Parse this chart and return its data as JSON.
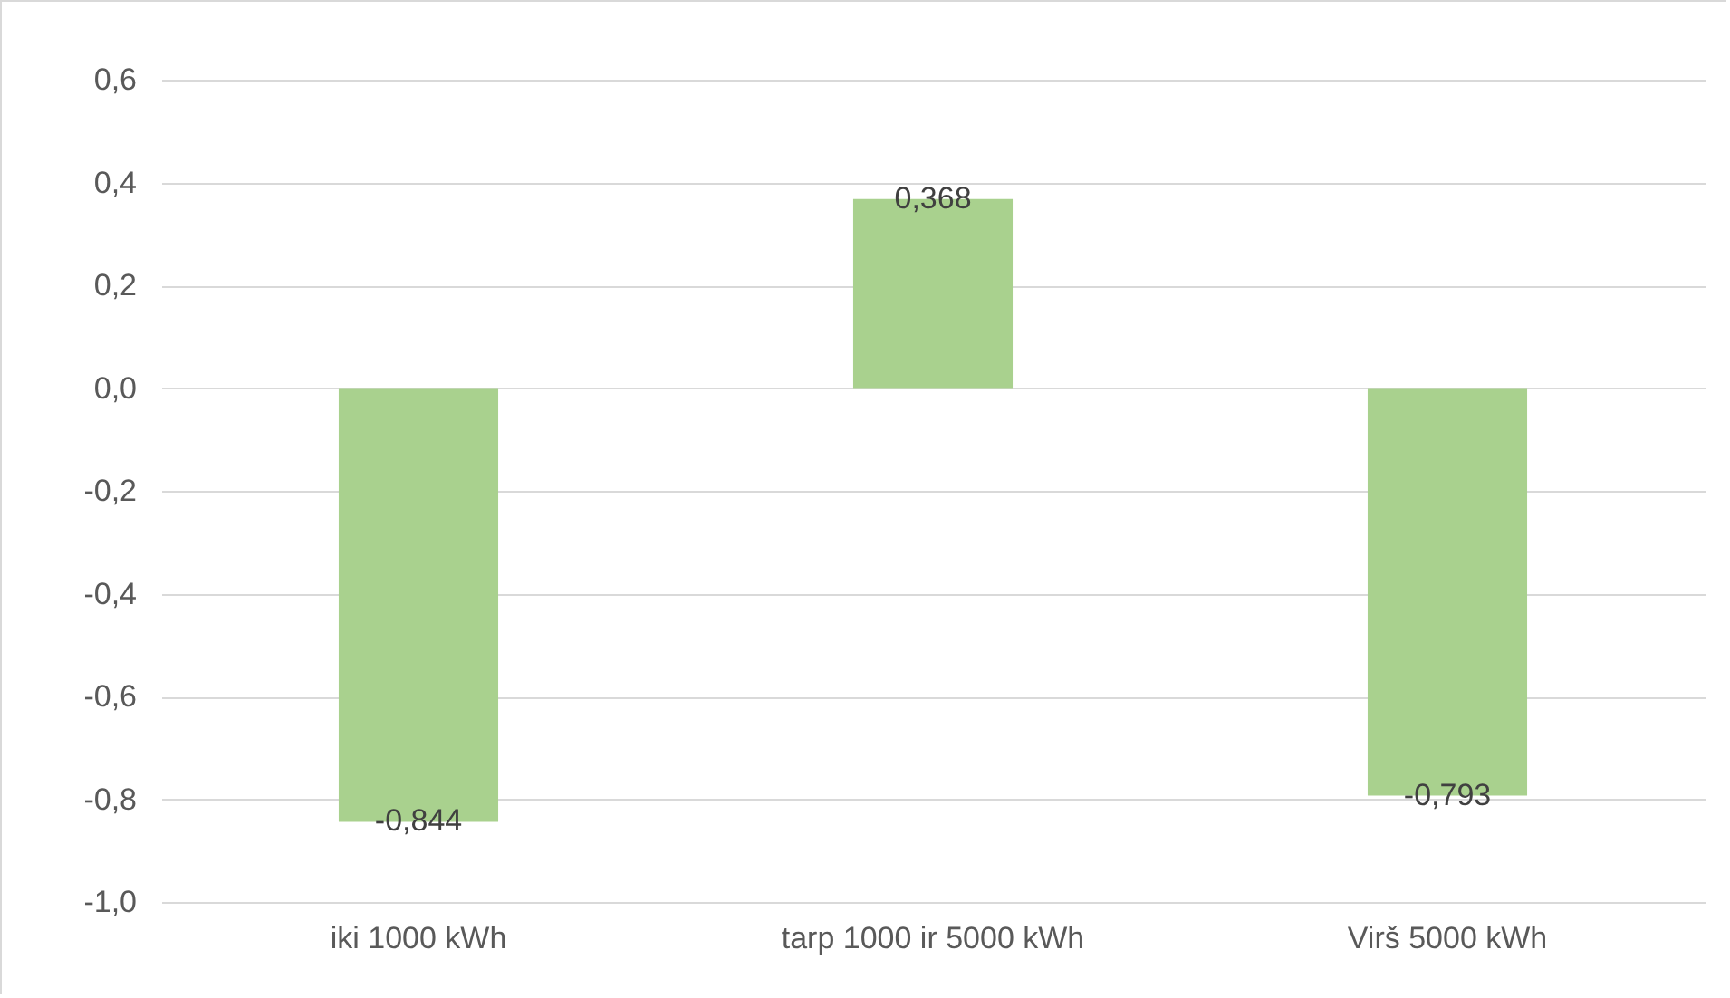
{
  "chart_data": {
    "type": "bar",
    "categories": [
      "iki 1000 kWh",
      "tarp 1000 ir 5000 kWh",
      "Virš 5000 kWh"
    ],
    "values": [
      -0.844,
      0.368,
      -0.793
    ],
    "value_labels": [
      "-0,844",
      "0,368",
      "-0,793"
    ],
    "color": "#a9d18e",
    "ylim": [
      -1.0,
      0.6
    ],
    "yticks": [
      {
        "value": -1.0,
        "label": "-1,0"
      },
      {
        "value": -0.8,
        "label": "-0,8"
      },
      {
        "value": -0.6,
        "label": "-0,6"
      },
      {
        "value": -0.4,
        "label": "-0,4"
      },
      {
        "value": -0.2,
        "label": "-0,2"
      },
      {
        "value": 0,
        "label": "0,0"
      },
      {
        "value": 0.2,
        "label": "0,2"
      },
      {
        "value": 0.4,
        "label": "0,4"
      },
      {
        "value": 0.6,
        "label": "0,6"
      }
    ],
    "grid": "y"
  }
}
